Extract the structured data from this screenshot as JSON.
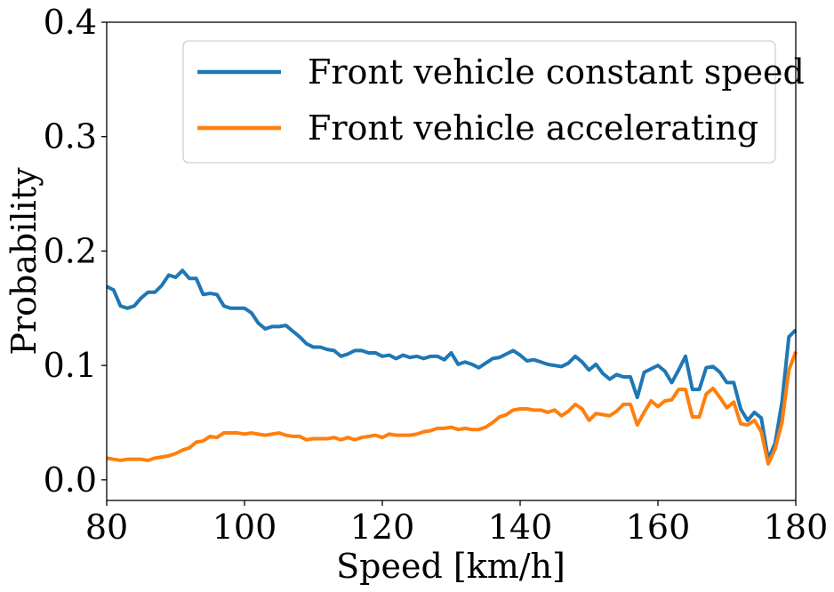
{
  "chart_data": {
    "type": "line",
    "title": "",
    "xlabel": "Speed [km/h]",
    "ylabel": "Probability",
    "xlim": [
      80,
      180
    ],
    "ylim": [
      -0.018,
      0.4
    ],
    "xticks": [
      80,
      100,
      120,
      140,
      160,
      180
    ],
    "xtick_labels": [
      "80",
      "100",
      "120",
      "140",
      "160",
      "180"
    ],
    "yticks": [
      0.0,
      0.1,
      0.2,
      0.3,
      0.4
    ],
    "ytick_labels": [
      "0.0",
      "0.1",
      "0.2",
      "0.3",
      "0.4"
    ],
    "grid": false,
    "legend_position": "top-right",
    "series": [
      {
        "name": "Front vehicle constant speed",
        "color": "#1f77b4",
        "x": [
          80,
          81,
          82,
          83,
          84,
          85,
          86,
          87,
          88,
          89,
          90,
          91,
          92,
          93,
          94,
          95,
          96,
          97,
          98,
          99,
          100,
          101,
          102,
          103,
          104,
          105,
          106,
          107,
          108,
          109,
          110,
          111,
          112,
          113,
          114,
          115,
          116,
          117,
          118,
          119,
          120,
          121,
          122,
          123,
          124,
          125,
          126,
          127,
          128,
          129,
          130,
          131,
          132,
          133,
          134,
          135,
          136,
          137,
          138,
          139,
          140,
          141,
          142,
          143,
          144,
          145,
          146,
          147,
          148,
          149,
          150,
          151,
          152,
          153,
          154,
          155,
          156,
          157,
          158,
          159,
          160,
          161,
          162,
          163,
          164,
          165,
          166,
          167,
          168,
          169,
          170,
          171,
          172,
          173,
          174,
          175,
          176,
          177,
          178,
          179,
          180
        ],
        "y": [
          0.169,
          0.166,
          0.152,
          0.15,
          0.152,
          0.159,
          0.164,
          0.164,
          0.17,
          0.179,
          0.177,
          0.183,
          0.176,
          0.176,
          0.162,
          0.163,
          0.162,
          0.152,
          0.15,
          0.15,
          0.15,
          0.146,
          0.137,
          0.132,
          0.134,
          0.134,
          0.135,
          0.13,
          0.125,
          0.119,
          0.116,
          0.116,
          0.114,
          0.113,
          0.108,
          0.11,
          0.113,
          0.113,
          0.111,
          0.111,
          0.108,
          0.109,
          0.106,
          0.109,
          0.107,
          0.108,
          0.106,
          0.108,
          0.108,
          0.105,
          0.111,
          0.101,
          0.103,
          0.101,
          0.098,
          0.102,
          0.106,
          0.107,
          0.11,
          0.113,
          0.109,
          0.104,
          0.105,
          0.103,
          0.101,
          0.1,
          0.099,
          0.102,
          0.108,
          0.103,
          0.096,
          0.101,
          0.093,
          0.088,
          0.092,
          0.09,
          0.09,
          0.072,
          0.094,
          0.097,
          0.1,
          0.095,
          0.085,
          0.096,
          0.108,
          0.079,
          0.079,
          0.098,
          0.099,
          0.094,
          0.085,
          0.085,
          0.062,
          0.052,
          0.059,
          0.054,
          0.018,
          0.032,
          0.068,
          0.125,
          0.131
        ]
      },
      {
        "name": "Front vehicle accelerating",
        "color": "#ff7f0e",
        "x": [
          80,
          81,
          82,
          83,
          84,
          85,
          86,
          87,
          88,
          89,
          90,
          91,
          92,
          93,
          94,
          95,
          96,
          97,
          98,
          99,
          100,
          101,
          102,
          103,
          104,
          105,
          106,
          107,
          108,
          109,
          110,
          111,
          112,
          113,
          114,
          115,
          116,
          117,
          118,
          119,
          120,
          121,
          122,
          123,
          124,
          125,
          126,
          127,
          128,
          129,
          130,
          131,
          132,
          133,
          134,
          135,
          136,
          137,
          138,
          139,
          140,
          141,
          142,
          143,
          144,
          145,
          146,
          147,
          148,
          149,
          150,
          151,
          152,
          153,
          154,
          155,
          156,
          157,
          158,
          159,
          160,
          161,
          162,
          163,
          164,
          165,
          166,
          167,
          168,
          169,
          170,
          171,
          172,
          173,
          174,
          175,
          176,
          177,
          178,
          179,
          180
        ],
        "y": [
          0.019,
          0.018,
          0.017,
          0.018,
          0.018,
          0.018,
          0.017,
          0.019,
          0.02,
          0.021,
          0.023,
          0.026,
          0.028,
          0.033,
          0.034,
          0.038,
          0.037,
          0.041,
          0.041,
          0.041,
          0.04,
          0.041,
          0.04,
          0.039,
          0.04,
          0.041,
          0.039,
          0.038,
          0.038,
          0.035,
          0.036,
          0.036,
          0.036,
          0.037,
          0.035,
          0.037,
          0.035,
          0.037,
          0.038,
          0.039,
          0.037,
          0.04,
          0.039,
          0.039,
          0.039,
          0.04,
          0.042,
          0.043,
          0.045,
          0.045,
          0.046,
          0.044,
          0.045,
          0.044,
          0.044,
          0.046,
          0.05,
          0.055,
          0.057,
          0.061,
          0.062,
          0.062,
          0.061,
          0.061,
          0.059,
          0.061,
          0.056,
          0.06,
          0.066,
          0.062,
          0.052,
          0.058,
          0.057,
          0.056,
          0.06,
          0.066,
          0.066,
          0.048,
          0.059,
          0.069,
          0.064,
          0.069,
          0.07,
          0.079,
          0.079,
          0.055,
          0.055,
          0.075,
          0.08,
          0.072,
          0.063,
          0.068,
          0.049,
          0.048,
          0.052,
          0.042,
          0.014,
          0.027,
          0.05,
          0.096,
          0.112
        ]
      }
    ]
  }
}
